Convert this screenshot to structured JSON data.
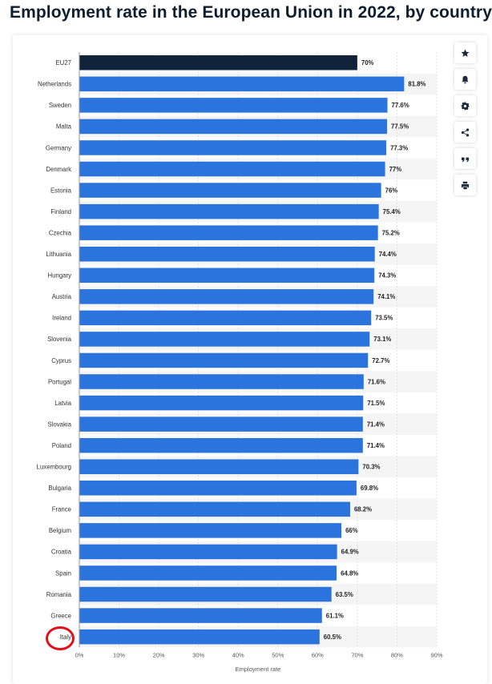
{
  "page": {
    "title": "Employment rate in the European Union in 2022, by country"
  },
  "toolbar": {
    "icons": [
      "star-icon",
      "bell-icon",
      "gear-icon",
      "share-icon",
      "quote-icon",
      "print-icon"
    ]
  },
  "colors": {
    "bar": "#2b73dd",
    "highlight_bar": "#11233a",
    "grid": "#dcdcdc",
    "text": "#333333",
    "annotation": "#e0101a"
  },
  "chart_data": {
    "type": "bar",
    "orientation": "horizontal",
    "title": "Employment rate in the European Union in 2022, by country",
    "xlabel": "Employment rate",
    "ylabel": "",
    "xlim": [
      0,
      90
    ],
    "ticks": [
      "0%",
      "10%",
      "20%",
      "30%",
      "40%",
      "50%",
      "60%",
      "70%",
      "80%",
      "90%"
    ],
    "tick_values": [
      0,
      10,
      20,
      30,
      40,
      50,
      60,
      70,
      80,
      90
    ],
    "highlight_category": "EU27",
    "annotated_category": "Italy",
    "categories": [
      "EU27",
      "Netherlands",
      "Sweden",
      "Malta",
      "Germany",
      "Denmark",
      "Estonia",
      "Finland",
      "Czechia",
      "Lithuania",
      "Hungary",
      "Austria",
      "Ireland",
      "Slovenia",
      "Cyprus",
      "Portugal",
      "Latvia",
      "Slovakia",
      "Poland",
      "Luxembourg",
      "Bulgaria",
      "France",
      "Belgium",
      "Croatia",
      "Spain",
      "Romania",
      "Greece",
      "Italy"
    ],
    "values": [
      70,
      81.8,
      77.6,
      77.5,
      77.3,
      77,
      76,
      75.4,
      75.2,
      74.4,
      74.3,
      74.1,
      73.5,
      73.1,
      72.7,
      71.6,
      71.5,
      71.4,
      71.4,
      70.3,
      69.8,
      68.2,
      66,
      64.9,
      64.8,
      63.5,
      61.1,
      60.5
    ],
    "value_labels": [
      "70%",
      "81.8%",
      "77.6%",
      "77.5%",
      "77.3%",
      "77%",
      "76%",
      "75.4%",
      "75.2%",
      "74.4%",
      "74.3%",
      "74.1%",
      "73.5%",
      "73.1%",
      "72.7%",
      "71.6%",
      "71.5%",
      "71.4%",
      "71.4%",
      "70.3%",
      "69.8%",
      "68.2%",
      "66%",
      "64.9%",
      "64.8%",
      "63.5%",
      "61.1%",
      "60.5%"
    ]
  }
}
